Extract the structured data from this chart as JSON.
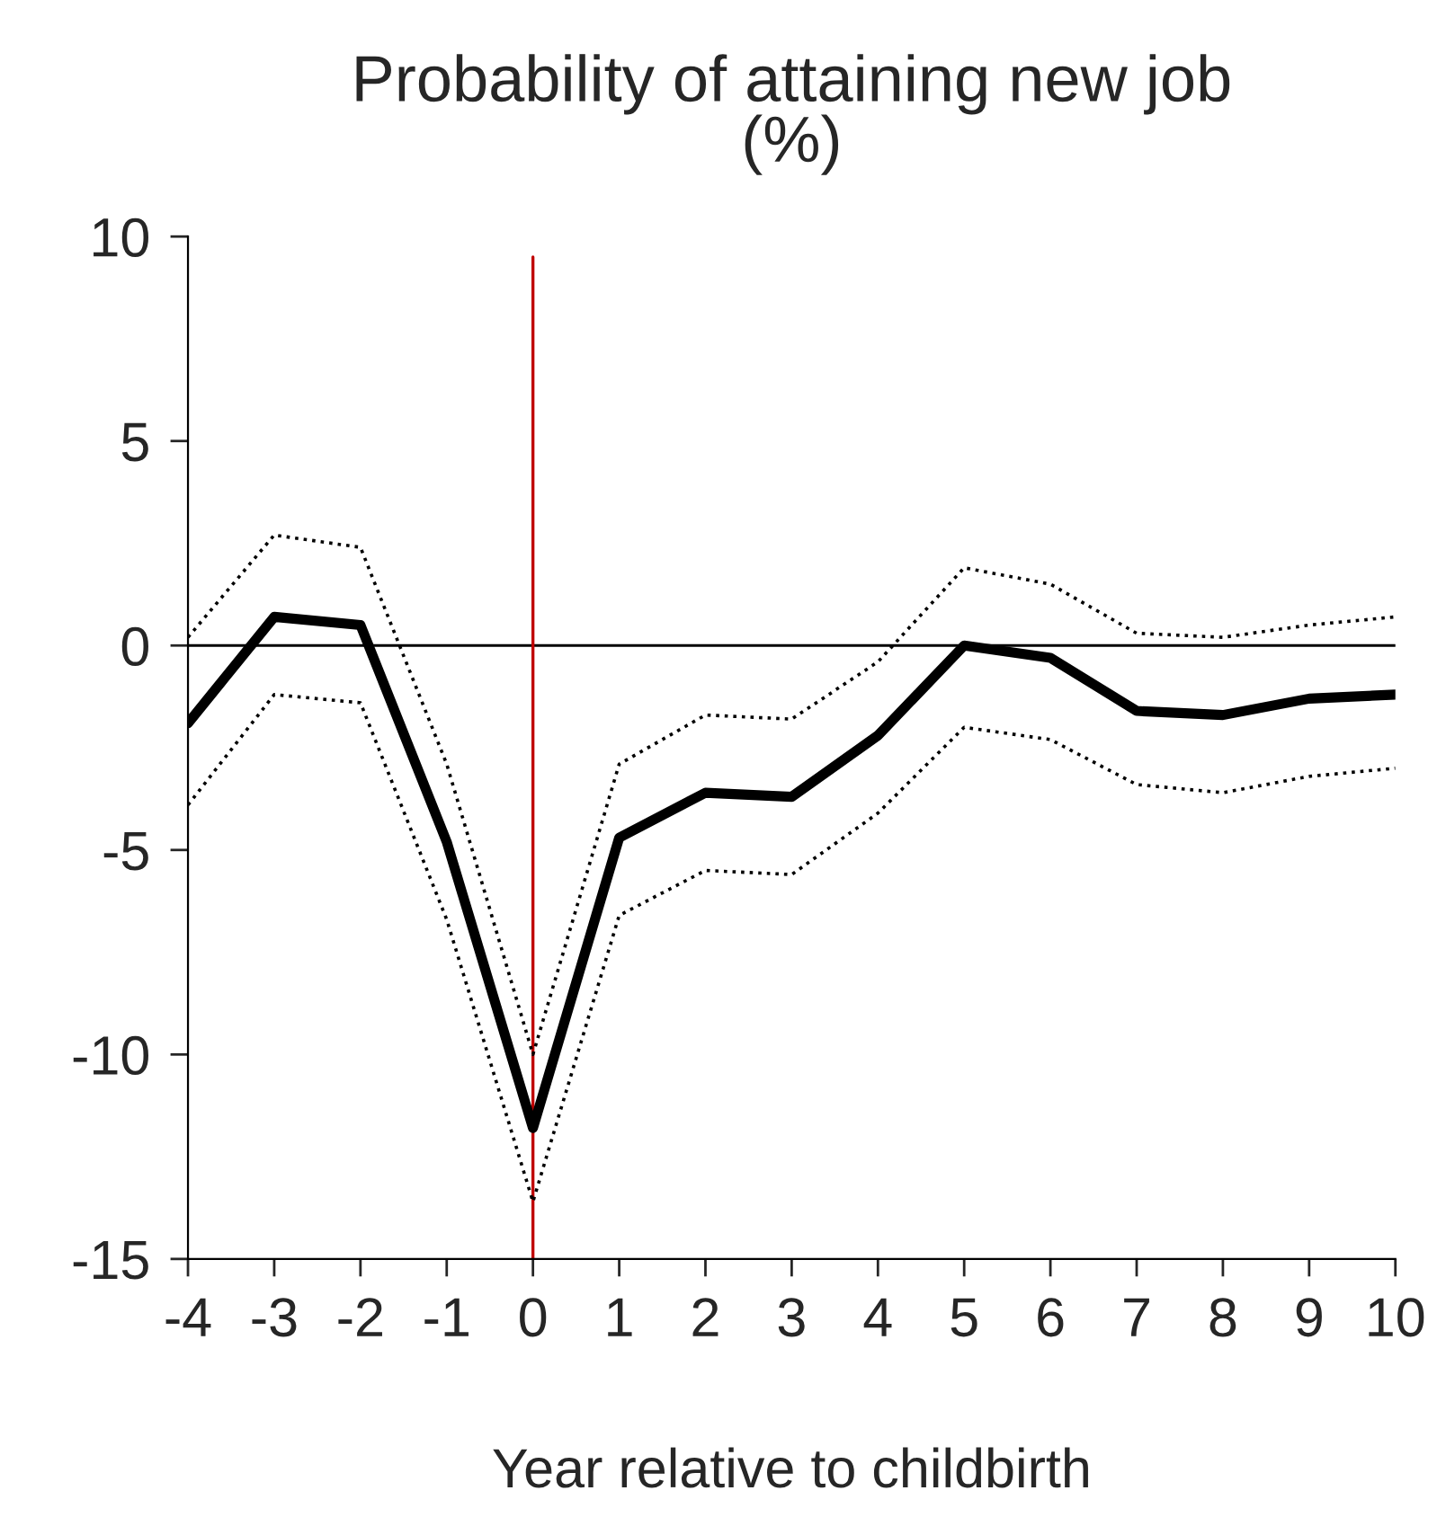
{
  "chart_data": {
    "type": "line",
    "title": "Probability of attaining new job\n(%)",
    "xlabel": "Year relative to childbirth",
    "x": [
      -4,
      -3,
      -2,
      -1,
      0,
      1,
      2,
      3,
      4,
      5,
      6,
      7,
      8,
      9,
      10
    ],
    "series": [
      {
        "color": "#000000",
        "line_style": "solid",
        "values": [
          -1.9,
          0.7,
          0.5,
          -4.8,
          -11.8,
          -4.7,
          -3.6,
          -3.7,
          -2.2,
          0.0,
          -0.3,
          -1.6,
          -1.7,
          -1.3,
          -1.2
        ]
      },
      {
        "color": "#000000",
        "line_style": "dotted",
        "values": [
          0.2,
          2.7,
          2.4,
          -2.9,
          -10.0,
          -2.9,
          -1.7,
          -1.8,
          -0.4,
          1.9,
          1.5,
          0.3,
          0.2,
          0.5,
          0.7
        ]
      },
      {
        "color": "#000000",
        "line_style": "dotted",
        "values": [
          -3.9,
          -1.2,
          -1.4,
          -6.7,
          -13.6,
          -6.6,
          -5.5,
          -5.6,
          -4.1,
          -2.0,
          -2.3,
          -3.4,
          -3.6,
          -3.2,
          -3.0
        ]
      }
    ],
    "xlim": [
      -4,
      10
    ],
    "xticks": [
      -4,
      -3,
      -2,
      -1,
      0,
      1,
      2,
      3,
      4,
      5,
      6,
      7,
      8,
      9,
      10
    ],
    "ylim": [
      -15,
      10
    ],
    "yticks": [
      -15,
      -10,
      -5,
      0,
      5,
      10
    ],
    "ref_lines": [
      {
        "axis": "y",
        "value": 0,
        "color": "#000000"
      },
      {
        "axis": "x",
        "value": 0,
        "color": "#c00000"
      }
    ],
    "grid": false,
    "legend": false,
    "marker": "none"
  }
}
